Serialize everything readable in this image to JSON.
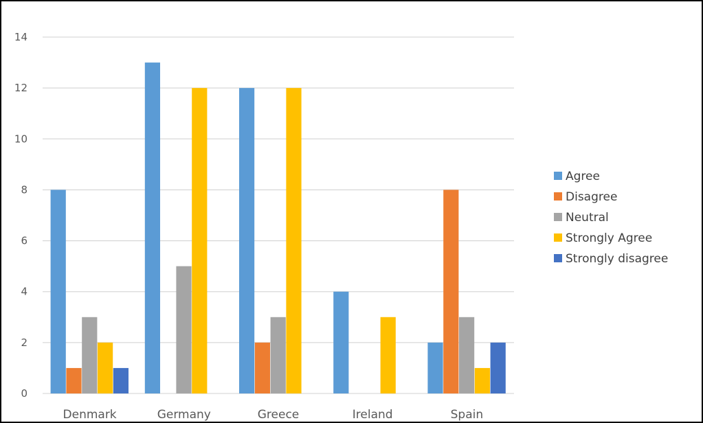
{
  "chart_data": {
    "type": "bar",
    "categories": [
      "Denmark",
      "Germany",
      "Greece",
      "Ireland",
      "Spain"
    ],
    "series": [
      {
        "name": "Agree",
        "color": "#5B9BD5",
        "values": [
          8,
          13,
          12,
          4,
          2
        ]
      },
      {
        "name": "Disagree",
        "color": "#ED7D31",
        "values": [
          1,
          0,
          2,
          0,
          8
        ]
      },
      {
        "name": "Neutral",
        "color": "#A5A5A5",
        "values": [
          3,
          5,
          3,
          0,
          3
        ]
      },
      {
        "name": "Strongly Agree",
        "color": "#FFC000",
        "values": [
          2,
          12,
          12,
          3,
          1
        ]
      },
      {
        "name": "Strongly disagree",
        "color": "#4472C4",
        "values": [
          1,
          0,
          0,
          0,
          2
        ]
      }
    ],
    "yticks": [
      "0",
      "2",
      "4",
      "6",
      "8",
      "10",
      "12",
      "14"
    ],
    "ylim": [
      0,
      14
    ],
    "grid": true,
    "legend_position": "right"
  }
}
